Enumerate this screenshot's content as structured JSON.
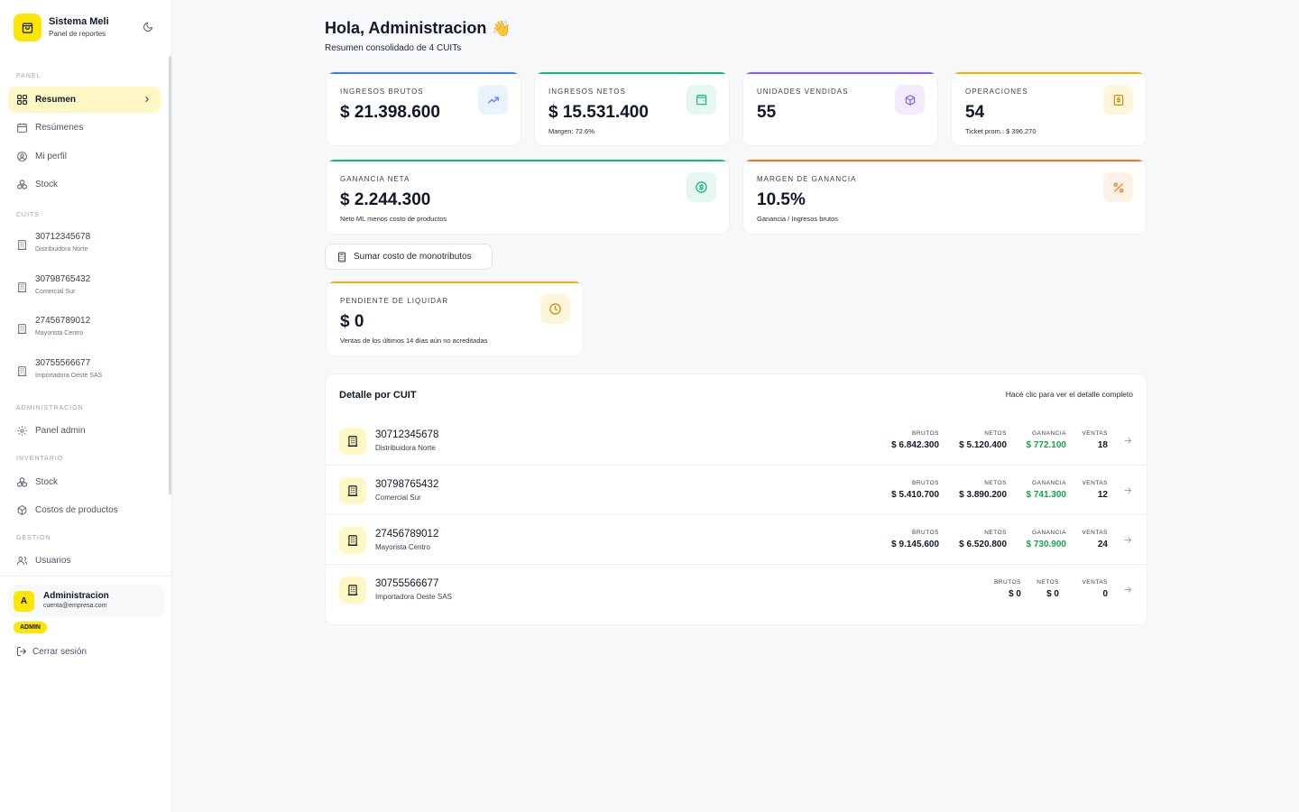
{
  "brand": {
    "name": "Sistema Meli",
    "subtitle": "Panel de reportes",
    "theme_icon": "moon-icon",
    "logo_icon": "shopping-bag-icon"
  },
  "sidebar": {
    "sections": {
      "panel": "PANEL",
      "cuits": "CUITS",
      "admin": "ADMINISTRACIÓN",
      "inventory": "INVENTARIO",
      "management": "GESTIÓN"
    },
    "panel_items": [
      {
        "label": "Resumen",
        "icon": "layout-grid-icon",
        "active": true
      },
      {
        "label": "Resúmenes",
        "icon": "calendar-icon"
      },
      {
        "label": "Mi perfil",
        "icon": "user-circle-icon"
      },
      {
        "label": "Stock",
        "icon": "boxes-icon"
      }
    ],
    "cuits": [
      {
        "number": "30712345678",
        "name": "Distribuidora Norte"
      },
      {
        "number": "30798765432",
        "name": "Comercial Sur"
      },
      {
        "number": "27456789012",
        "name": "Mayorista Centro"
      },
      {
        "number": "30755566677",
        "name": "Importadora Oeste SAS"
      }
    ],
    "admin_items": [
      {
        "label": "Panel admin",
        "icon": "gear-icon"
      }
    ],
    "inventory_items": [
      {
        "label": "Stock",
        "icon": "boxes-icon"
      },
      {
        "label": "Costos de productos",
        "icon": "package-icon"
      }
    ],
    "management_items": [
      {
        "label": "Usuarios",
        "icon": "users-icon"
      }
    ]
  },
  "user": {
    "initial": "A",
    "name": "Administracion",
    "email": "cuenta@empresa.com",
    "role": "ADMIN",
    "logout": "Cerrar sesión"
  },
  "header": {
    "greeting": "Hola, Administracion",
    "wave": "👋",
    "subtitle": "Resumen consolidado de 4 CUITs"
  },
  "kpis": {
    "gross": {
      "label": "INGRESOS BRUTOS",
      "value": "$ 21.398.600",
      "icon": "trending-up-icon",
      "color": "#3b82f6"
    },
    "net": {
      "label": "INGRESOS NETOS",
      "value": "$ 15.531.400",
      "note": "Margen: 72.6%",
      "icon": "wallet-icon",
      "color": "#10b981"
    },
    "units": {
      "label": "UNIDADES VENDIDAS",
      "value": "55",
      "icon": "cube-icon",
      "color": "#8b5cf6"
    },
    "ops": {
      "label": "OPERACIONES",
      "value": "54",
      "note": "Ticket prom.: $ 396.270",
      "icon": "receipt-dollar-icon",
      "color": "#eab308"
    },
    "profit": {
      "label": "GANANCIA NETA",
      "value": "$ 2.244.300",
      "note": "Neto ML menos costo de productos",
      "icon": "dollar-circle-icon",
      "color": "#10b981"
    },
    "margin": {
      "label": "MARGEN DE GANANCIA",
      "value": "10.5%",
      "note": "Ganancia / Ingresos brutos",
      "icon": "percent-icon",
      "color": "#f97316"
    },
    "pending": {
      "label": "PENDIENTE DE LIQUIDAR",
      "value": "$ 0",
      "note": "Ventas de los últimos 14 días aún no acreditadas",
      "icon": "clock-icon",
      "color": "#eab308"
    }
  },
  "actions": {
    "monotributo": "Sumar costo de monotributos"
  },
  "detail": {
    "title": "Detalle por CUIT",
    "hint": "Hacé clic para ver el detalle completo",
    "columns": {
      "gross": "BRUTOS",
      "net": "NETOS",
      "profit": "GANANCIA",
      "sales": "VENTAS"
    },
    "rows": [
      {
        "number": "30712345678",
        "name": "Distribuidora Norte",
        "gross": "$ 6.842.300",
        "net": "$ 5.120.400",
        "profit": "$ 772.100",
        "sales": "18"
      },
      {
        "number": "30798765432",
        "name": "Comercial Sur",
        "gross": "$ 5.410.700",
        "net": "$ 3.890.200",
        "profit": "$ 741.300",
        "sales": "12"
      },
      {
        "number": "27456789012",
        "name": "Mayorista Centro",
        "gross": "$ 9.145.600",
        "net": "$ 6.520.800",
        "profit": "$ 730.900",
        "sales": "24"
      },
      {
        "number": "30755566677",
        "name": "Importadora Oeste SAS",
        "gross": "$ 0",
        "net": "$ 0",
        "sales": "0"
      }
    ]
  }
}
